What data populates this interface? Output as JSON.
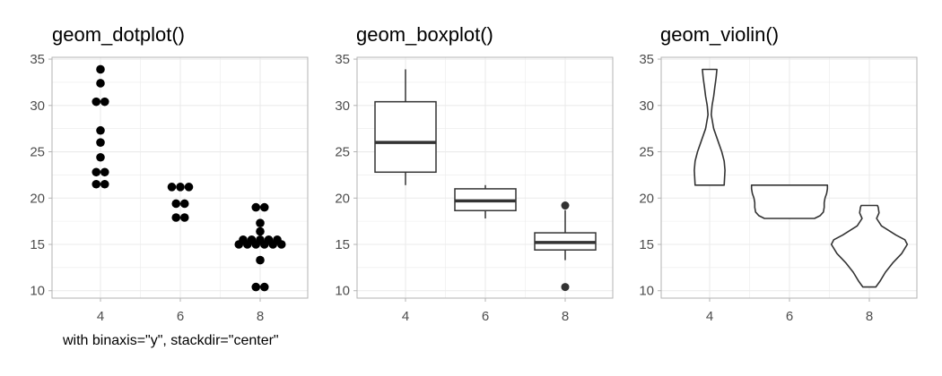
{
  "colors": {
    "grid": "#ebebeb",
    "frame": "#b3b3b3",
    "mark": "#000000",
    "box": "#333333",
    "tick_text": "#4d4d4d"
  },
  "caption": "with binaxis=\"y\", stackdir=\"center\"",
  "chart_data": [
    {
      "type": "dotplot",
      "title": "geom_dotplot()",
      "categories": [
        "4",
        "6",
        "8"
      ],
      "ylim": [
        9.2,
        35.2
      ],
      "yticks": [
        10,
        15,
        20,
        25,
        30,
        35
      ],
      "grid": true,
      "dots": [
        [
          [
            21.5,
            2
          ],
          [
            22.8,
            2
          ],
          [
            24.4,
            1
          ],
          [
            26.0,
            1
          ],
          [
            27.3,
            1
          ],
          [
            30.4,
            2
          ],
          [
            32.4,
            1
          ],
          [
            33.9,
            1
          ]
        ],
        [
          [
            17.9,
            2
          ],
          [
            19.4,
            2
          ],
          [
            21.2,
            3
          ]
        ],
        [
          [
            10.4,
            2
          ],
          [
            13.3,
            1
          ],
          [
            15.0,
            6
          ],
          [
            15.5,
            5
          ],
          [
            16.4,
            1
          ],
          [
            17.3,
            1
          ],
          [
            19.0,
            2
          ]
        ]
      ]
    },
    {
      "type": "boxplot",
      "title": "geom_boxplot()",
      "categories": [
        "4",
        "6",
        "8"
      ],
      "ylim": [
        9.2,
        35.2
      ],
      "yticks": [
        10,
        15,
        20,
        25,
        30,
        35
      ],
      "grid": true,
      "boxes": [
        {
          "min": 21.4,
          "q1": 22.8,
          "median": 26.0,
          "q3": 30.4,
          "max": 33.9,
          "outliers": []
        },
        {
          "min": 17.8,
          "q1": 18.65,
          "median": 19.7,
          "q3": 21.0,
          "max": 21.4,
          "outliers": []
        },
        {
          "min": 13.3,
          "q1": 14.4,
          "median": 15.2,
          "q3": 16.25,
          "max": 18.7,
          "outliers": [
            19.2,
            10.4
          ]
        }
      ]
    },
    {
      "type": "violin",
      "title": "geom_violin()",
      "categories": [
        "4",
        "6",
        "8"
      ],
      "ylim": [
        9.2,
        35.2
      ],
      "yticks": [
        10,
        15,
        20,
        25,
        30,
        35
      ],
      "grid": true,
      "violins": [
        {
          "ymin": 21.4,
          "ymax": 33.9,
          "profile": [
            [
              21.4,
              0.18
            ],
            [
              23.0,
              0.19
            ],
            [
              24.0,
              0.18
            ],
            [
              25.0,
              0.15
            ],
            [
              26.0,
              0.11
            ],
            [
              27.5,
              0.05
            ],
            [
              29.0,
              0.02
            ],
            [
              30.0,
              0.03
            ],
            [
              31.0,
              0.05
            ],
            [
              32.0,
              0.065
            ],
            [
              33.0,
              0.08
            ],
            [
              33.9,
              0.09
            ]
          ]
        },
        {
          "ymin": 17.8,
          "ymax": 21.4,
          "profile": [
            [
              17.8,
              0.31
            ],
            [
              18.1,
              0.38
            ],
            [
              18.5,
              0.42
            ],
            [
              19.0,
              0.43
            ],
            [
              19.5,
              0.43
            ],
            [
              20.0,
              0.44
            ],
            [
              20.5,
              0.46
            ],
            [
              21.0,
              0.47
            ],
            [
              21.4,
              0.47
            ]
          ]
        },
        {
          "ymin": 10.4,
          "ymax": 19.2,
          "profile": [
            [
              10.4,
              0.08
            ],
            [
              11.0,
              0.13
            ],
            [
              12.0,
              0.2
            ],
            [
              13.0,
              0.29
            ],
            [
              14.0,
              0.4
            ],
            [
              15.0,
              0.47
            ],
            [
              15.5,
              0.44
            ],
            [
              16.0,
              0.33
            ],
            [
              17.0,
              0.15
            ],
            [
              17.8,
              0.09
            ],
            [
              18.4,
              0.12
            ],
            [
              19.0,
              0.11
            ],
            [
              19.2,
              0.1
            ]
          ]
        }
      ]
    }
  ]
}
